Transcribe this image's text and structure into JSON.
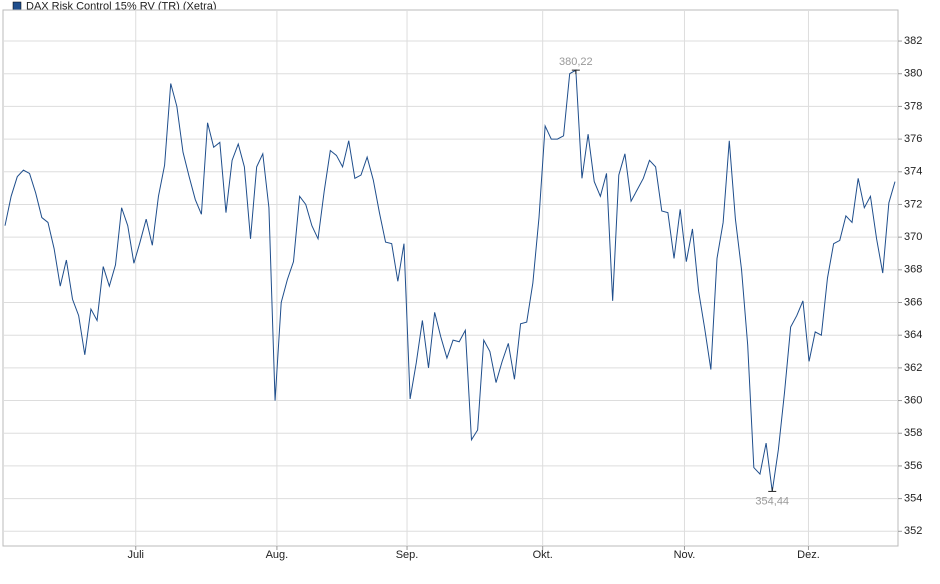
{
  "chart_data": {
    "type": "line",
    "series": [
      {
        "name": "DAX Risk Control 15% RV (TR) (Xetra)",
        "color": "#1f4e8c",
        "values": [
          370.7,
          372.5,
          373.7,
          374.1,
          373.9,
          372.7,
          371.2,
          370.9,
          369.3,
          367.0,
          368.6,
          366.2,
          365.2,
          362.8,
          365.6,
          364.9,
          368.2,
          367.0,
          368.3,
          371.8,
          370.7,
          368.4,
          369.7,
          371.1,
          369.5,
          372.5,
          374.4,
          379.4,
          378.0,
          375.2,
          373.7,
          372.3,
          371.4,
          377.0,
          375.5,
          375.8,
          371.5,
          374.7,
          375.7,
          374.3,
          369.9,
          374.3,
          375.1,
          371.8,
          360.0,
          366.0,
          367.4,
          368.5,
          372.5,
          372.0,
          370.7,
          369.9,
          372.8,
          375.3,
          375.0,
          374.3,
          375.9,
          373.6,
          373.8,
          374.9,
          373.5,
          371.5,
          369.7,
          369.6,
          367.3,
          369.6,
          360.1,
          362.3,
          364.9,
          362.0,
          365.4,
          363.9,
          362.6,
          363.7,
          363.6,
          364.3,
          357.6,
          358.2,
          363.7,
          363.0,
          361.1,
          362.4,
          363.5,
          361.3,
          364.7,
          364.8,
          367.2,
          371.2,
          376.8,
          376.0,
          376.0,
          376.2,
          380.0,
          380.22,
          373.6,
          376.3,
          373.4,
          372.5,
          373.9,
          366.1,
          373.8,
          375.1,
          372.2,
          372.9,
          373.6,
          374.7,
          374.3,
          371.6,
          371.5,
          368.7,
          371.7,
          368.5,
          370.5,
          366.7,
          364.4,
          361.9,
          368.7,
          370.9,
          375.9,
          371.1,
          368.0,
          363.4,
          355.9,
          355.5,
          357.4,
          354.44,
          357.0,
          360.5,
          364.5,
          365.2,
          366.1,
          362.4,
          364.2,
          364.0,
          367.5,
          369.6,
          369.8,
          371.3,
          370.9,
          373.6,
          371.8,
          372.5,
          369.9,
          367.8,
          372.1,
          373.4
        ]
      }
    ],
    "xlim": [
      0,
      145
    ],
    "xticks": [
      {
        "value": 21.3,
        "label": "Juli"
      },
      {
        "value": 44.3,
        "label": "Aug."
      },
      {
        "value": 65.5,
        "label": "Sep."
      },
      {
        "value": 87.6,
        "label": "Okt."
      },
      {
        "value": 110.7,
        "label": "Nov."
      },
      {
        "value": 130.9,
        "label": "Dez."
      }
    ],
    "ylim": [
      351.1,
      383.9
    ],
    "yticks": [
      352,
      354,
      356,
      358,
      360,
      362,
      364,
      366,
      368,
      370,
      372,
      374,
      376,
      378,
      380,
      382
    ],
    "annotations": [
      {
        "value": 380.22,
        "label": "380,22"
      },
      {
        "value": 354.44,
        "label": "354,44"
      }
    ],
    "grid": true
  }
}
